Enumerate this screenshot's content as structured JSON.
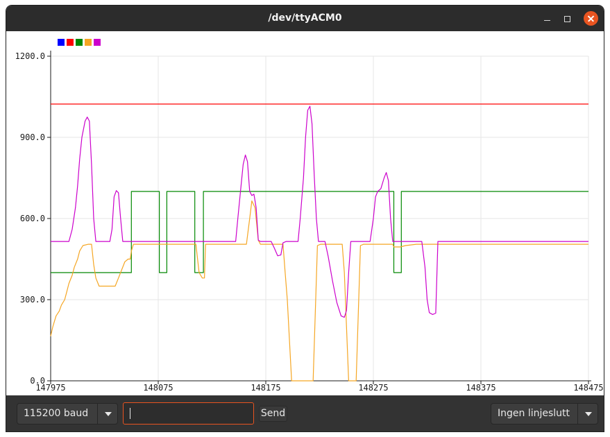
{
  "window": {
    "title": "/dev/ttyACM0"
  },
  "toolbar": {
    "baud_value": "115200 baud",
    "input_value": "",
    "send_label": "Send",
    "line_ending_value": "Ingen linjeslutt"
  },
  "chart_data": {
    "type": "line",
    "title": "",
    "xlabel": "",
    "ylabel": "",
    "xlim": [
      147975,
      148475
    ],
    "ylim": [
      0,
      1200
    ],
    "x_ticks": [
      "147975",
      "148075",
      "148175",
      "148275",
      "148375",
      "148475"
    ],
    "y_ticks": [
      "0.0",
      "300.0",
      "600.0",
      "900.0",
      "1200.0"
    ],
    "grid": true,
    "legend_position": "top-left",
    "series": [
      {
        "color": "#0000ff",
        "points": []
      },
      {
        "color": "#ff0000",
        "points": [
          [
            147975,
            1023
          ],
          [
            148475,
            1023
          ]
        ]
      },
      {
        "color": "#008800",
        "points": [
          [
            147975,
            400
          ],
          [
            148050,
            400
          ],
          [
            148050,
            700
          ],
          [
            148076,
            700
          ],
          [
            148076,
            400
          ],
          [
            148083,
            400
          ],
          [
            148083,
            700
          ],
          [
            148109,
            700
          ],
          [
            148109,
            400
          ],
          [
            148117,
            400
          ],
          [
            148117,
            700
          ],
          [
            148294,
            700
          ],
          [
            148294,
            400
          ],
          [
            148301,
            400
          ],
          [
            148301,
            700
          ],
          [
            148475,
            700
          ]
        ]
      },
      {
        "color": "#f5a623",
        "points": [
          [
            147975,
            165
          ],
          [
            147977,
            200
          ],
          [
            147980,
            240
          ],
          [
            147983,
            258
          ],
          [
            147985,
            280
          ],
          [
            147988,
            300
          ],
          [
            147990,
            330
          ],
          [
            147992,
            360
          ],
          [
            147995,
            390
          ],
          [
            147997,
            420
          ],
          [
            148000,
            450
          ],
          [
            148002,
            480
          ],
          [
            148005,
            500
          ],
          [
            148010,
            505
          ],
          [
            148013,
            505
          ],
          [
            148015,
            430
          ],
          [
            148017,
            380
          ],
          [
            148020,
            350
          ],
          [
            148035,
            350
          ],
          [
            148038,
            380
          ],
          [
            148041,
            410
          ],
          [
            148044,
            440
          ],
          [
            148047,
            450
          ],
          [
            148049,
            450
          ],
          [
            148050,
            480
          ],
          [
            148052,
            505
          ],
          [
            148110,
            505
          ],
          [
            148113,
            400
          ],
          [
            148116,
            380
          ],
          [
            148118,
            380
          ],
          [
            148119,
            505
          ],
          [
            148157,
            505
          ],
          [
            148160,
            600
          ],
          [
            148162,
            665
          ],
          [
            148165,
            640
          ],
          [
            148168,
            520
          ],
          [
            148170,
            505
          ],
          [
            148191,
            505
          ],
          [
            148193,
            400
          ],
          [
            148195,
            300
          ],
          [
            148197,
            150
          ],
          [
            148199,
            0
          ],
          [
            148219,
            0
          ],
          [
            148221,
            250
          ],
          [
            148223,
            500
          ],
          [
            148226,
            505
          ],
          [
            148246,
            505
          ],
          [
            148248,
            400
          ],
          [
            148250,
            200
          ],
          [
            148252,
            0
          ],
          [
            148259,
            0
          ],
          [
            148261,
            250
          ],
          [
            148263,
            500
          ],
          [
            148266,
            505
          ],
          [
            148293,
            505
          ],
          [
            148294,
            495
          ],
          [
            148300,
            495
          ],
          [
            148305,
            500
          ],
          [
            148315,
            505
          ],
          [
            148475,
            505
          ]
        ]
      },
      {
        "color": "#cc00cc",
        "points": [
          [
            147975,
            515
          ],
          [
            147992,
            515
          ],
          [
            147995,
            560
          ],
          [
            147998,
            640
          ],
          [
            148000,
            720
          ],
          [
            148002,
            820
          ],
          [
            148004,
            900
          ],
          [
            148007,
            960
          ],
          [
            148009,
            975
          ],
          [
            148011,
            960
          ],
          [
            148013,
            800
          ],
          [
            148015,
            600
          ],
          [
            148017,
            515
          ],
          [
            148030,
            515
          ],
          [
            148032,
            560
          ],
          [
            148034,
            680
          ],
          [
            148036,
            703
          ],
          [
            148038,
            695
          ],
          [
            148040,
            600
          ],
          [
            148042,
            515
          ],
          [
            148100,
            515
          ],
          [
            148125,
            515
          ],
          [
            148147,
            515
          ],
          [
            148149,
            600
          ],
          [
            148152,
            720
          ],
          [
            148154,
            800
          ],
          [
            148156,
            835
          ],
          [
            148158,
            810
          ],
          [
            148160,
            700
          ],
          [
            148162,
            685
          ],
          [
            148164,
            690
          ],
          [
            148166,
            640
          ],
          [
            148168,
            520
          ],
          [
            148170,
            515
          ],
          [
            148180,
            515
          ],
          [
            148183,
            490
          ],
          [
            148186,
            462
          ],
          [
            148189,
            465
          ],
          [
            148191,
            510
          ],
          [
            148194,
            515
          ],
          [
            148205,
            515
          ],
          [
            148207,
            600
          ],
          [
            148210,
            750
          ],
          [
            148212,
            900
          ],
          [
            148214,
            1000
          ],
          [
            148216,
            1015
          ],
          [
            148218,
            950
          ],
          [
            148220,
            760
          ],
          [
            148222,
            600
          ],
          [
            148224,
            515
          ],
          [
            148230,
            515
          ],
          [
            148233,
            460
          ],
          [
            148237,
            370
          ],
          [
            148241,
            290
          ],
          [
            148245,
            240
          ],
          [
            148248,
            235
          ],
          [
            148250,
            260
          ],
          [
            148252,
            400
          ],
          [
            148254,
            515
          ],
          [
            148272,
            515
          ],
          [
            148275,
            600
          ],
          [
            148277,
            680
          ],
          [
            148279,
            700
          ],
          [
            148282,
            710
          ],
          [
            148285,
            750
          ],
          [
            148287,
            770
          ],
          [
            148289,
            740
          ],
          [
            148291,
            600
          ],
          [
            148293,
            515
          ],
          [
            148320,
            515
          ],
          [
            148323,
            420
          ],
          [
            148325,
            300
          ],
          [
            148327,
            252
          ],
          [
            148330,
            245
          ],
          [
            148333,
            250
          ],
          [
            148335,
            515
          ],
          [
            148475,
            515
          ]
        ]
      }
    ]
  }
}
